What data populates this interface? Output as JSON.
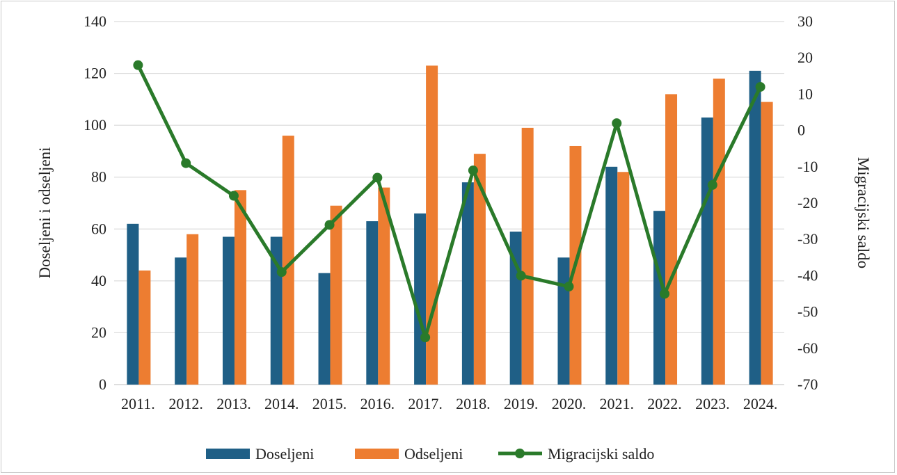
{
  "chart_data": {
    "type": "bar",
    "categories": [
      "2011.",
      "2012.",
      "2013.",
      "2014.",
      "2015.",
      "2016.",
      "2017.",
      "2018.",
      "2019.",
      "2020.",
      "2021.",
      "2022.",
      "2023.",
      "2024."
    ],
    "series": [
      {
        "name": "Doseljeni",
        "type": "bar",
        "axis": "left",
        "color": "#1f5f86",
        "values": [
          62,
          49,
          57,
          57,
          43,
          63,
          66,
          78,
          59,
          49,
          84,
          67,
          103,
          121
        ]
      },
      {
        "name": "Odseljeni",
        "type": "bar",
        "axis": "left",
        "color": "#ed7d31",
        "values": [
          44,
          58,
          75,
          96,
          69,
          76,
          123,
          89,
          99,
          92,
          82,
          112,
          118,
          109
        ]
      },
      {
        "name": "Migracijski saldo",
        "type": "line",
        "axis": "right",
        "color": "#2a7a2a",
        "values": [
          18,
          -9,
          -18,
          -39,
          -26,
          -13,
          -57,
          -11,
          -40,
          -43,
          2,
          -45,
          -15,
          12
        ]
      }
    ],
    "ylabel": "Doseljeni i odseljeni",
    "y2label": "Migracijski saldo",
    "ylim": [
      0,
      140
    ],
    "y2lim": [
      -70,
      30
    ],
    "yticks": [
      "0",
      "20",
      "40",
      "60",
      "80",
      "100",
      "120",
      "140"
    ],
    "y2ticks": [
      "-70",
      "-60",
      "-50",
      "-40",
      "-30",
      "-20",
      "-10",
      "0",
      "10",
      "20",
      "30"
    ],
    "grid": true,
    "legend": "bottom"
  }
}
